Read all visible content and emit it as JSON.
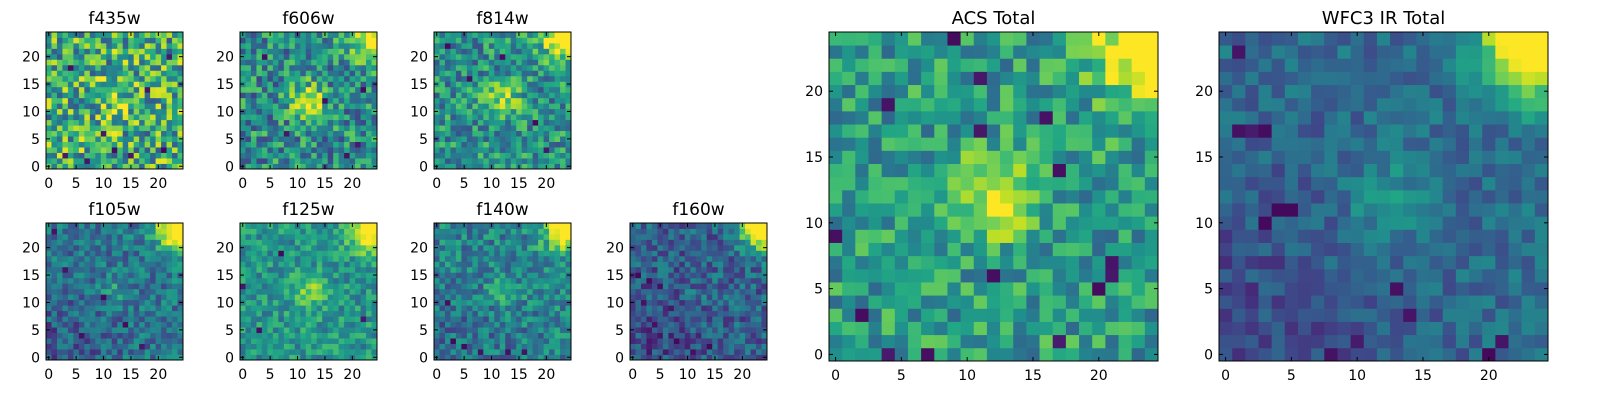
{
  "chart_data": {
    "type": "heatmap",
    "colormap": "viridis",
    "grid": false,
    "grid_size": [
      25,
      25
    ],
    "ylim": [
      -0.5,
      24.5
    ],
    "xlim": [
      -0.5,
      24.5
    ],
    "panels": [
      {
        "id": "f435w",
        "title": "f435w",
        "x_ticks": [
          "0",
          "5",
          "10",
          "15",
          "20"
        ],
        "y_ticks": [
          "0",
          "5",
          "10",
          "15",
          "20"
        ],
        "bright_peaks": [],
        "dark_spots": [
          [
            3,
            2
          ],
          [
            7,
            1
          ],
          [
            15,
            2
          ],
          [
            21,
            3
          ],
          [
            4,
            18
          ],
          [
            10,
            6
          ],
          [
            18,
            14
          ],
          [
            22,
            20
          ],
          [
            12,
            3
          ]
        ],
        "base_level": 0.62,
        "noise": 0.35,
        "center_blob": 0.2,
        "corner_glow": 0.0,
        "lower_left_dark": 0.0
      },
      {
        "id": "f606w",
        "title": "f606w",
        "x_ticks": [
          "0",
          "5",
          "10",
          "15",
          "20"
        ],
        "y_ticks": [
          "0",
          "5",
          "10",
          "15",
          "20"
        ],
        "dark_spots": [
          [
            19,
            2
          ],
          [
            21,
            4
          ],
          [
            15,
            12
          ],
          [
            4,
            20
          ],
          [
            22,
            14
          ],
          [
            8,
            6
          ]
        ],
        "base_level": 0.48,
        "noise": 0.28,
        "center_blob": 0.45,
        "corner_glow": 0.7,
        "lower_left_dark": 0.0
      },
      {
        "id": "f814w",
        "title": "f814w",
        "x_ticks": [
          "0",
          "5",
          "10",
          "15",
          "20"
        ],
        "y_ticks": [
          "0",
          "5",
          "10",
          "15",
          "20"
        ],
        "dark_spots": [
          [
            20,
            3
          ],
          [
            18,
            8
          ],
          [
            6,
            16
          ],
          [
            2,
            22
          ],
          [
            12,
            20
          ]
        ],
        "base_level": 0.5,
        "noise": 0.25,
        "center_blob": 0.35,
        "corner_glow": 0.8,
        "lower_left_dark": 0.0
      },
      {
        "id": "f105w",
        "title": "f105w",
        "x_ticks": [
          "0",
          "5",
          "10",
          "15",
          "20"
        ],
        "y_ticks": [
          "0",
          "5",
          "10",
          "15",
          "20"
        ],
        "dark_spots": [
          [
            1,
            23
          ],
          [
            3,
            16
          ],
          [
            10,
            11
          ],
          [
            14,
            6
          ],
          [
            17,
            2
          ],
          [
            6,
            4
          ]
        ],
        "base_level": 0.4,
        "noise": 0.18,
        "center_blob": 0.15,
        "corner_glow": 0.9,
        "lower_left_dark": 0.12
      },
      {
        "id": "f125w",
        "title": "f125w",
        "x_ticks": [
          "0",
          "5",
          "10",
          "15",
          "20"
        ],
        "y_ticks": [
          "0",
          "5",
          "10",
          "15",
          "20"
        ],
        "dark_spots": [
          [
            0,
            13
          ],
          [
            7,
            19
          ],
          [
            3,
            5
          ],
          [
            22,
            7
          ]
        ],
        "base_level": 0.52,
        "noise": 0.18,
        "center_blob": 0.3,
        "corner_glow": 0.75,
        "lower_left_dark": 0.0
      },
      {
        "id": "f140w",
        "title": "f140w",
        "x_ticks": [
          "0",
          "5",
          "10",
          "15",
          "20"
        ],
        "y_ticks": [
          "0",
          "5",
          "10",
          "15",
          "20"
        ],
        "dark_spots": [
          [
            3,
            3
          ],
          [
            5,
            2
          ],
          [
            8,
            1
          ],
          [
            13,
            1
          ],
          [
            16,
            1
          ],
          [
            2,
            10
          ]
        ],
        "base_level": 0.45,
        "noise": 0.2,
        "center_blob": 0.15,
        "corner_glow": 0.85,
        "lower_left_dark": 0.1
      },
      {
        "id": "f160w",
        "title": "f160w",
        "x_ticks": [
          "0",
          "5",
          "10",
          "15",
          "20"
        ],
        "y_ticks": [
          "0",
          "5",
          "10",
          "15",
          "20"
        ],
        "dark_spots": [
          [
            1,
            15
          ],
          [
            3,
            14
          ],
          [
            5,
            13
          ],
          [
            2,
            10
          ],
          [
            4,
            6
          ],
          [
            8,
            3
          ],
          [
            3,
            1
          ],
          [
            11,
            1
          ],
          [
            14,
            2
          ],
          [
            7,
            9
          ]
        ],
        "base_level": 0.32,
        "noise": 0.18,
        "center_blob": 0.05,
        "corner_glow": 1.0,
        "lower_left_dark": 0.1
      },
      {
        "id": "acs_total",
        "title": "ACS Total",
        "x_ticks": [
          "0",
          "5",
          "10",
          "15",
          "20"
        ],
        "y_ticks": [
          "0",
          "5",
          "10",
          "15",
          "20"
        ],
        "dark_spots": [
          [
            4,
            19
          ],
          [
            9,
            24
          ],
          [
            11,
            21
          ],
          [
            11,
            17
          ],
          [
            16,
            18
          ],
          [
            17,
            14
          ],
          [
            0,
            9
          ],
          [
            12,
            6
          ],
          [
            21,
            7
          ],
          [
            21,
            6
          ],
          [
            20,
            5
          ],
          [
            4,
            0
          ],
          [
            7,
            0
          ],
          [
            2,
            3
          ],
          [
            17,
            1
          ]
        ],
        "base_level": 0.55,
        "noise": 0.22,
        "center_blob": 0.45,
        "corner_glow": 0.7,
        "lower_left_dark": 0.0
      },
      {
        "id": "wfc3_ir_total",
        "title": "WFC3 IR Total",
        "x_ticks": [
          "0",
          "5",
          "10",
          "15",
          "20"
        ],
        "y_ticks": [
          "0",
          "5",
          "10",
          "15",
          "20"
        ],
        "dark_spots": [
          [
            1,
            23
          ],
          [
            1,
            17
          ],
          [
            2,
            17
          ],
          [
            3,
            17
          ],
          [
            4,
            11
          ],
          [
            5,
            11
          ],
          [
            3,
            10
          ],
          [
            20,
            0
          ],
          [
            21,
            1
          ],
          [
            14,
            3
          ],
          [
            13,
            5
          ],
          [
            10,
            1
          ],
          [
            8,
            0
          ]
        ],
        "base_level": 0.36,
        "noise": 0.12,
        "center_blob": 0.18,
        "corner_glow": 1.0,
        "lower_left_dark": 0.14
      }
    ]
  }
}
